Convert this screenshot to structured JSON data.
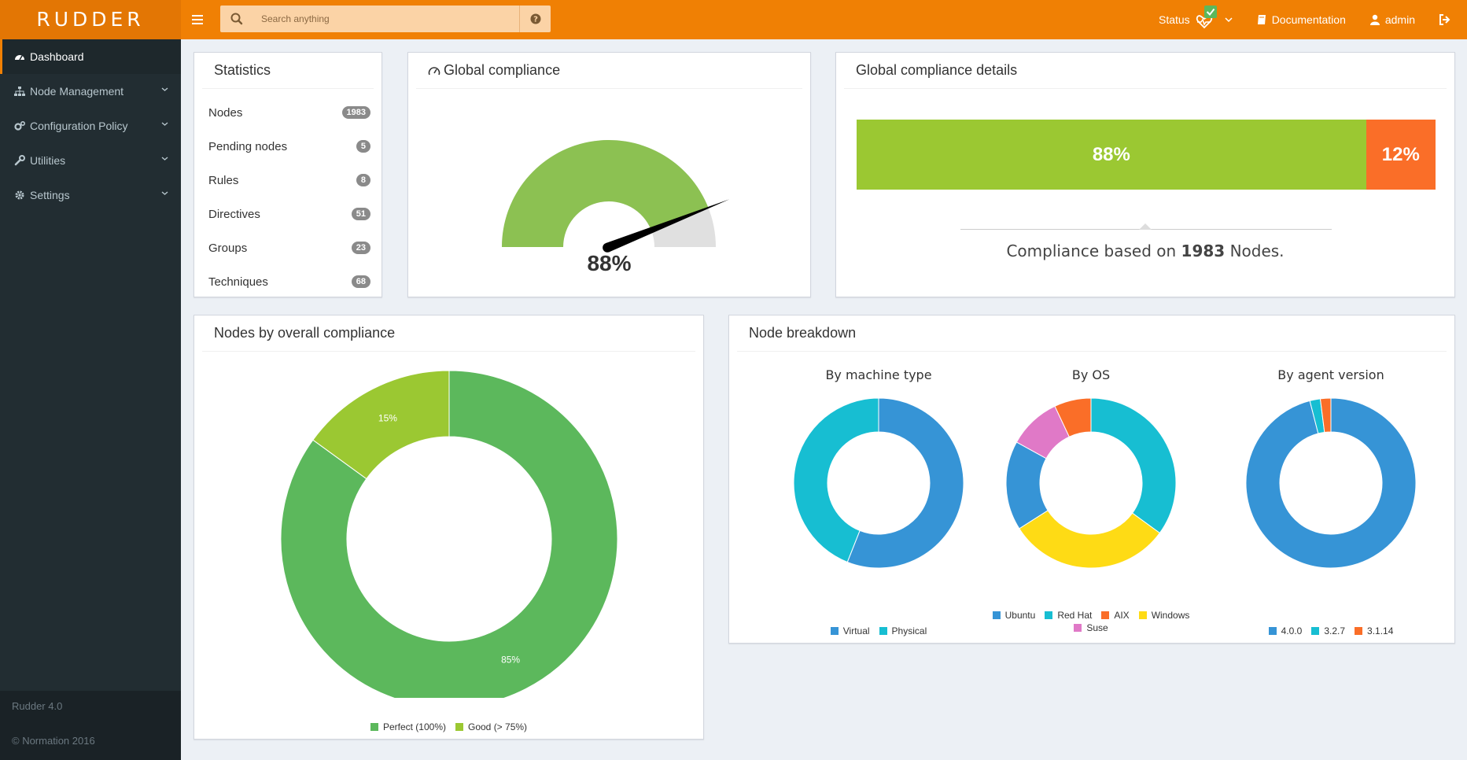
{
  "brand": {
    "logo_text": "RUDDER"
  },
  "header": {
    "search_placeholder": "Search anything",
    "status_label": "Status",
    "documentation_label": "Documentation",
    "user_label": "admin"
  },
  "sidebar": {
    "items": [
      {
        "label": "Dashboard"
      },
      {
        "label": "Node Management"
      },
      {
        "label": "Configuration Policy"
      },
      {
        "label": "Utilities"
      },
      {
        "label": "Settings"
      }
    ],
    "version": "Rudder 4.0",
    "copyright": "© Normation 2016"
  },
  "statistics": {
    "title": "Statistics",
    "rows": [
      {
        "label": "Nodes",
        "count": "1983"
      },
      {
        "label": "Pending nodes",
        "count": "5"
      },
      {
        "label": "Rules",
        "count": "8"
      },
      {
        "label": "Directives",
        "count": "51"
      },
      {
        "label": "Groups",
        "count": "23"
      },
      {
        "label": "Techniques",
        "count": "68"
      }
    ]
  },
  "global_compliance": {
    "title": "Global compliance",
    "value_label": "88%",
    "value": 88
  },
  "compliance_details": {
    "title": "Global compliance details",
    "success_label": "88%",
    "error_label": "12%",
    "success_pct": 88,
    "based_prefix": "Compliance based on",
    "based_count": "1983",
    "based_suffix": "Nodes."
  },
  "nodes_by_compliance": {
    "title": "Nodes by overall compliance"
  },
  "node_breakdown": {
    "title": "Node breakdown",
    "by_machine_title": "By machine type",
    "by_os_title": "By OS",
    "by_agent_title": "By agent version"
  },
  "colors": {
    "orange": "#f08004",
    "green": "#9bc832",
    "perfect": "#5cb85c",
    "good": "#9bc832",
    "blue": "#3694d6",
    "cyan": "#17bed2",
    "red_orange": "#fa6e28",
    "yellow": "#fedb15",
    "pink": "#e079c7"
  },
  "chart_data": [
    {
      "id": "nodes-by-compliance",
      "type": "pie",
      "title": "Nodes by overall compliance",
      "categories": [
        "Perfect (100%)",
        "Good (> 75%)"
      ],
      "values": [
        85,
        15
      ],
      "value_labels": [
        "85%",
        "15%"
      ],
      "colors": [
        "#5cb85c",
        "#9bc832"
      ]
    },
    {
      "id": "by-machine-type",
      "type": "pie",
      "title": "By machine type",
      "categories": [
        "Virtual",
        "Physical"
      ],
      "values": [
        56,
        44
      ],
      "colors": [
        "#3694d6",
        "#17bed2"
      ]
    },
    {
      "id": "by-os",
      "type": "pie",
      "title": "By OS",
      "categories": [
        "Ubuntu",
        "Red Hat",
        "AIX",
        "Windows",
        "Suse"
      ],
      "values": [
        17,
        35,
        7,
        31,
        10
      ],
      "ordered_slices": [
        {
          "name": "Red Hat",
          "value": 35
        },
        {
          "name": "Windows",
          "value": 31
        },
        {
          "name": "Ubuntu",
          "value": 17
        },
        {
          "name": "Suse",
          "value": 10
        },
        {
          "name": "AIX",
          "value": 7
        }
      ],
      "colors": [
        "#3694d6",
        "#17bed2",
        "#fa6e28",
        "#fedb15",
        "#e079c7"
      ]
    },
    {
      "id": "by-agent-version",
      "type": "pie",
      "title": "By agent version",
      "categories": [
        "4.0.0",
        "3.2.7",
        "3.1.14"
      ],
      "values": [
        96,
        2,
        2
      ],
      "colors": [
        "#3694d6",
        "#17bed2",
        "#fa6e28"
      ]
    }
  ]
}
